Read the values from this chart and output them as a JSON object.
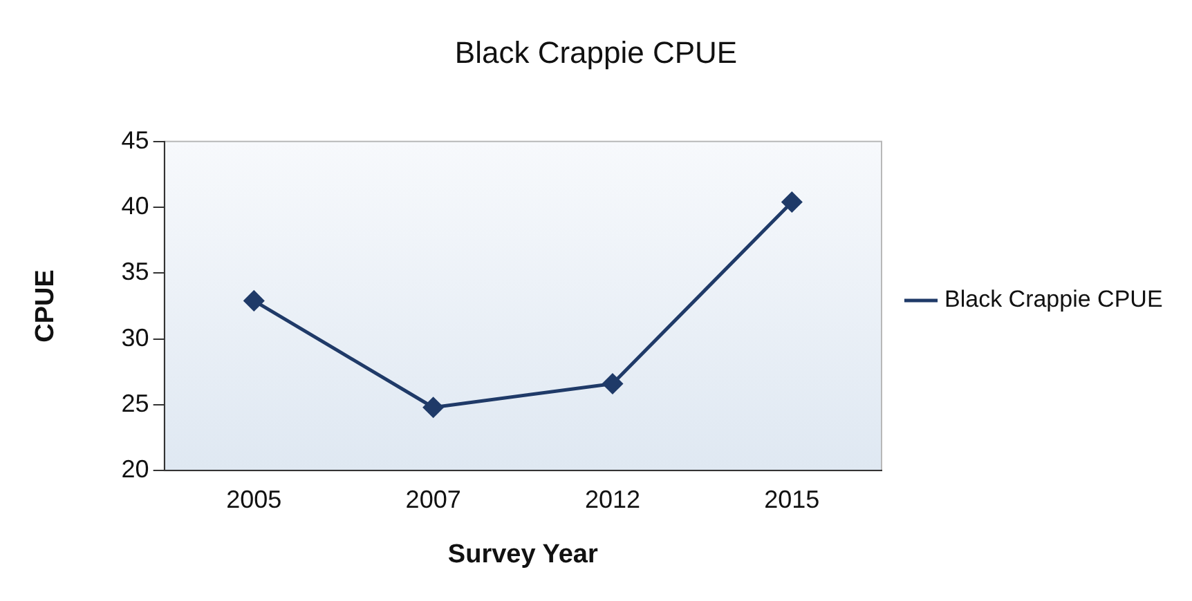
{
  "chart_data": {
    "type": "line",
    "title": "Black Crappie CPUE",
    "xlabel": "Survey Year",
    "ylabel": "CPUE",
    "categories": [
      "2005",
      "2007",
      "2012",
      "2015"
    ],
    "series": [
      {
        "name": "Black Crappie CPUE",
        "color": "#1f3a68",
        "values": [
          32.9,
          24.8,
          26.6,
          40.4
        ]
      }
    ],
    "ylim": [
      20,
      45
    ],
    "yticks": [
      20,
      25,
      30,
      35,
      40,
      45
    ],
    "grid": false,
    "legend": "right",
    "marker": "diamond",
    "line_style": "solid"
  }
}
